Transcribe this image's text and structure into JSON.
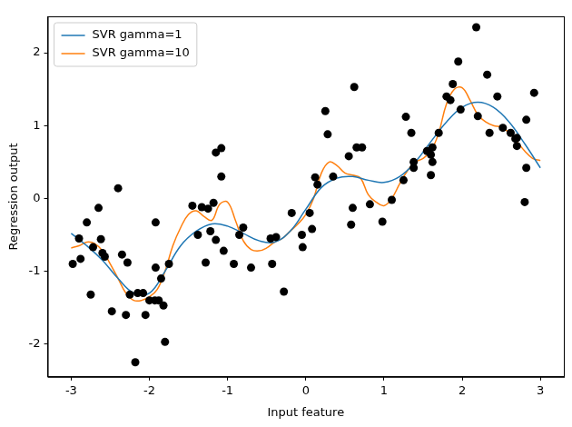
{
  "chart_data": {
    "type": "scatter",
    "x_label": "Input feature",
    "y_label": "Regression output",
    "xlim": [
      -3.3,
      3.3
    ],
    "ylim": [
      -2.45,
      2.5
    ],
    "xticks": [
      -3,
      -2,
      -1,
      0,
      1,
      2,
      3
    ],
    "yticks": [
      -2,
      -1,
      0,
      1,
      2
    ],
    "grid": false,
    "legend": "upper left",
    "series": [
      {
        "name": "SVR gamma=1",
        "type": "line",
        "color": "#1f77b4",
        "line_style": "solid",
        "x": [
          -3.0,
          -2.8,
          -2.6,
          -2.4,
          -2.2,
          -2.0,
          -1.8,
          -1.6,
          -1.4,
          -1.2,
          -1.0,
          -0.8,
          -0.6,
          -0.4,
          -0.2,
          0.0,
          0.2,
          0.4,
          0.6,
          0.8,
          1.0,
          1.2,
          1.4,
          1.6,
          1.8,
          2.0,
          2.2,
          2.4,
          2.6,
          2.8,
          3.0
        ],
        "values": [
          -0.48,
          -0.65,
          -0.85,
          -1.1,
          -1.3,
          -1.3,
          -1.0,
          -0.65,
          -0.45,
          -0.35,
          -0.38,
          -0.48,
          -0.58,
          -0.6,
          -0.45,
          -0.15,
          0.15,
          0.28,
          0.3,
          0.25,
          0.22,
          0.3,
          0.5,
          0.78,
          1.05,
          1.25,
          1.32,
          1.25,
          1.05,
          0.75,
          0.42
        ]
      },
      {
        "name": "SVR gamma=10",
        "type": "line",
        "color": "#ff7f0e",
        "line_style": "solid",
        "x": [
          -3.0,
          -2.9,
          -2.8,
          -2.7,
          -2.6,
          -2.5,
          -2.4,
          -2.3,
          -2.2,
          -2.1,
          -2.0,
          -1.9,
          -1.8,
          -1.7,
          -1.6,
          -1.5,
          -1.4,
          -1.3,
          -1.2,
          -1.1,
          -1.0,
          -0.9,
          -0.8,
          -0.7,
          -0.6,
          -0.5,
          -0.4,
          -0.3,
          -0.2,
          -0.1,
          0.0,
          0.1,
          0.2,
          0.3,
          0.4,
          0.5,
          0.6,
          0.7,
          0.8,
          0.9,
          1.0,
          1.1,
          1.2,
          1.3,
          1.4,
          1.5,
          1.6,
          1.7,
          1.8,
          1.9,
          2.0,
          2.1,
          2.2,
          2.3,
          2.4,
          2.5,
          2.6,
          2.7,
          2.8,
          2.9,
          3.0
        ],
        "values": [
          -0.68,
          -0.65,
          -0.6,
          -0.62,
          -0.72,
          -0.9,
          -1.1,
          -1.3,
          -1.4,
          -1.4,
          -1.35,
          -1.25,
          -1.0,
          -0.65,
          -0.4,
          -0.22,
          -0.17,
          -0.25,
          -0.3,
          -0.08,
          -0.05,
          -0.3,
          -0.58,
          -0.7,
          -0.72,
          -0.68,
          -0.6,
          -0.55,
          -0.45,
          -0.35,
          -0.22,
          0.0,
          0.35,
          0.5,
          0.45,
          0.35,
          0.32,
          0.28,
          0.05,
          -0.05,
          -0.1,
          0.0,
          0.2,
          0.38,
          0.5,
          0.55,
          0.65,
          0.9,
          1.3,
          1.5,
          1.52,
          1.35,
          1.15,
          1.05,
          1.0,
          0.98,
          0.9,
          0.78,
          0.65,
          0.55,
          0.52
        ]
      },
      {
        "type": "scatter",
        "color": "#000000",
        "marker": "circle",
        "x": [
          -2.98,
          -2.9,
          -2.88,
          -2.8,
          -2.75,
          -2.72,
          -2.65,
          -2.62,
          -2.6,
          -2.57,
          -2.48,
          -2.4,
          -2.35,
          -2.3,
          -2.28,
          -2.25,
          -2.18,
          -2.15,
          -2.08,
          -2.05,
          -2.0,
          -1.93,
          -1.92,
          -1.92,
          -1.88,
          -1.85,
          -1.82,
          -1.8,
          -1.75,
          -1.45,
          -1.38,
          -1.33,
          -1.28,
          -1.25,
          -1.22,
          -1.18,
          -1.15,
          -1.15,
          -1.08,
          -1.08,
          -1.05,
          -0.92,
          -0.85,
          -0.8,
          -0.7,
          -0.45,
          -0.43,
          -0.38,
          -0.28,
          -0.18,
          -0.05,
          -0.04,
          0.05,
          0.08,
          0.12,
          0.15,
          0.25,
          0.28,
          0.35,
          0.55,
          0.58,
          0.6,
          0.62,
          0.65,
          0.72,
          0.82,
          0.98,
          1.1,
          1.25,
          1.28,
          1.35,
          1.38,
          1.38,
          1.55,
          1.6,
          1.62,
          1.6,
          1.62,
          1.7,
          1.8,
          1.85,
          1.88,
          1.95,
          1.98,
          2.18,
          2.2,
          2.32,
          2.35,
          2.45,
          2.52,
          2.62,
          2.68,
          2.7,
          2.7,
          2.8,
          2.82,
          2.82,
          2.92
        ],
        "values": [
          -0.9,
          -0.55,
          -0.83,
          -0.33,
          -1.32,
          -0.67,
          -0.13,
          -0.56,
          -0.75,
          -0.8,
          -1.55,
          0.14,
          -0.77,
          -1.6,
          -0.88,
          -1.32,
          -2.25,
          -1.3,
          -1.3,
          -1.6,
          -1.4,
          -1.4,
          -0.95,
          -0.33,
          -1.4,
          -1.1,
          -1.47,
          -1.97,
          -0.9,
          -0.1,
          -0.5,
          -0.12,
          -0.88,
          -0.14,
          -0.45,
          -0.06,
          0.63,
          -0.57,
          0.69,
          0.3,
          -0.72,
          -0.9,
          -0.5,
          -0.4,
          -0.95,
          -0.55,
          -0.9,
          -0.53,
          -1.28,
          -0.2,
          -0.5,
          -0.67,
          -0.2,
          -0.42,
          0.29,
          0.19,
          1.2,
          0.88,
          0.3,
          0.58,
          -0.36,
          -0.13,
          1.53,
          0.7,
          0.7,
          -0.08,
          -0.32,
          -0.02,
          0.25,
          1.12,
          0.9,
          0.5,
          0.42,
          0.65,
          0.32,
          0.7,
          0.6,
          0.5,
          0.9,
          1.4,
          1.35,
          1.57,
          1.88,
          1.22,
          2.35,
          1.13,
          1.7,
          0.9,
          1.4,
          0.97,
          0.9,
          0.82,
          0.72,
          0.83,
          -0.05,
          0.42,
          1.08,
          1.45
        ]
      }
    ]
  }
}
